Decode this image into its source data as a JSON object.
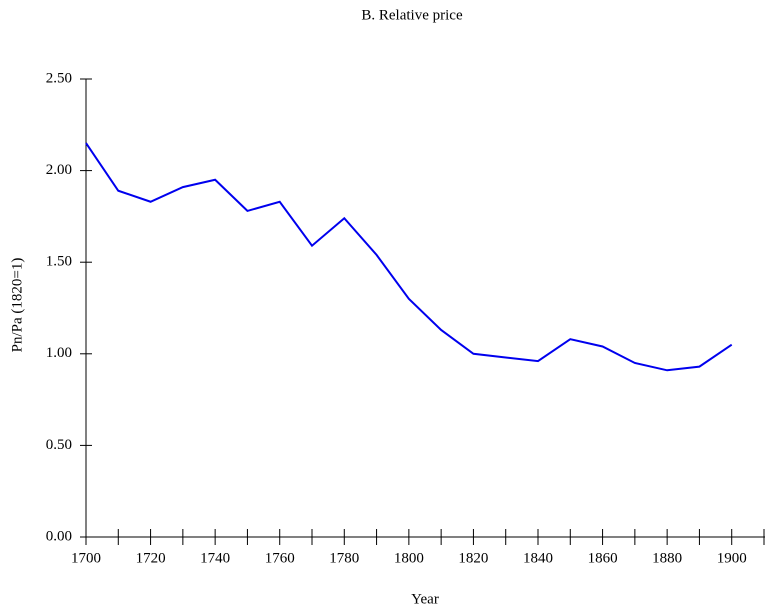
{
  "chart_data": {
    "type": "line",
    "title": "B. Relative price",
    "x_label": "Year",
    "y_label": "Pn/Pa (1820=1)",
    "x": [
      1700,
      1710,
      1720,
      1730,
      1740,
      1750,
      1760,
      1770,
      1780,
      1790,
      1800,
      1810,
      1820,
      1830,
      1840,
      1850,
      1860,
      1870,
      1880,
      1890,
      1900
    ],
    "series": [
      {
        "name": "Pn/Pa",
        "color": "#0000ee",
        "values": [
          2.15,
          1.89,
          1.83,
          1.91,
          1.95,
          1.78,
          1.83,
          1.59,
          1.74,
          1.54,
          1.3,
          1.13,
          1.0,
          0.98,
          0.96,
          1.08,
          1.04,
          0.95,
          0.91,
          0.93,
          1.05
        ]
      }
    ],
    "xlim": [
      1700,
      1910
    ],
    "ylim": [
      0,
      2.5
    ],
    "xticks": [
      1700,
      1720,
      1740,
      1760,
      1780,
      1800,
      1820,
      1840,
      1860,
      1880,
      1900
    ],
    "xminor_ticks": [
      1710,
      1730,
      1750,
      1770,
      1790,
      1810,
      1830,
      1850,
      1870,
      1890,
      1910
    ],
    "yticks": [
      {
        "value": 0,
        "label": "0.00"
      },
      {
        "value": 0.5,
        "label": "0.50"
      },
      {
        "value": 1,
        "label": "1.00"
      },
      {
        "value": 1.5,
        "label": "1.50"
      },
      {
        "value": 2,
        "label": "2.00"
      },
      {
        "value": 2.5,
        "label": "2.50"
      }
    ],
    "grid": false
  }
}
